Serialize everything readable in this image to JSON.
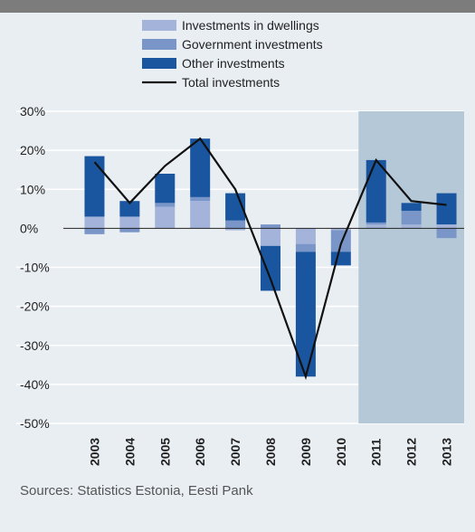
{
  "chart_data": {
    "type": "bar",
    "stacked": true,
    "categories": [
      "2003",
      "2004",
      "2005",
      "2006",
      "2007",
      "2008",
      "2009",
      "2010",
      "2011",
      "2012",
      "2013"
    ],
    "series": [
      {
        "name": "Investments in dwellings",
        "color": "#a3b3da",
        "values": [
          3.0,
          3.0,
          5.5,
          7.0,
          -0.5,
          -4.5,
          -4.0,
          -0.5,
          1.0,
          1.0,
          1.0
        ]
      },
      {
        "name": "Government investments",
        "color": "#7a95c8",
        "values": [
          -1.5,
          -1.0,
          1.0,
          1.0,
          2.0,
          1.0,
          -2.0,
          -5.5,
          0.5,
          3.5,
          -2.5
        ]
      },
      {
        "name": "Other investments",
        "color": "#1a56a0",
        "values": [
          15.5,
          4.0,
          7.5,
          15.0,
          7.0,
          -11.5,
          -32.0,
          -3.5,
          16.0,
          2.0,
          8.0
        ]
      }
    ],
    "line_series": {
      "name": "Total investments",
      "color": "#111111",
      "values": [
        17.0,
        6.5,
        16.0,
        23.0,
        10.0,
        -13.0,
        -38.0,
        -4.0,
        17.5,
        7.0,
        6.0
      ]
    },
    "ylim": [
      -50,
      30
    ],
    "yticks": [
      "30%",
      "20%",
      "10%",
      "0%",
      "-10%",
      "-20%",
      "-30%",
      "-40%",
      "-50%"
    ],
    "ytick_values": [
      30,
      20,
      10,
      0,
      -10,
      -20,
      -30,
      -40,
      -50
    ],
    "shaded_from": "2011",
    "shade_color": "#b4c8d8",
    "grid": "horizontal",
    "legend_position": "top-center"
  },
  "source": "Sources: Statistics Estonia, Eesti Pank"
}
